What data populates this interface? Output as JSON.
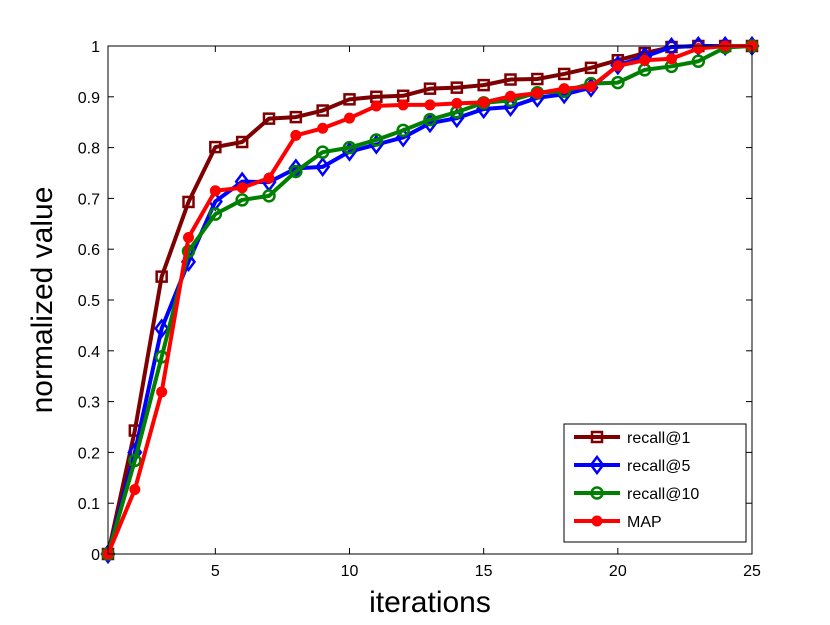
{
  "chart_data": {
    "type": "line",
    "title": "",
    "xlabel": "iterations",
    "ylabel": "normalized value",
    "xlim": [
      1,
      25
    ],
    "ylim": [
      0,
      1
    ],
    "xticks": [
      5,
      10,
      15,
      20,
      25
    ],
    "yticks": [
      0,
      0.1,
      0.2,
      0.3,
      0.4,
      0.5,
      0.6,
      0.7,
      0.8,
      0.9,
      1
    ],
    "ytick_labels": [
      "0",
      "0.1",
      "0.2",
      "0.3",
      "0.4",
      "0.5",
      "0.6",
      "0.7",
      "0.8",
      "0.9",
      "1"
    ],
    "grid": false,
    "legend_position": "bottom-right",
    "x": [
      1,
      2,
      3,
      4,
      5,
      6,
      7,
      8,
      9,
      10,
      11,
      12,
      13,
      14,
      15,
      16,
      17,
      18,
      19,
      20,
      21,
      22,
      23,
      24,
      25
    ],
    "series": [
      {
        "name": "recall@1",
        "color": "#7f0000",
        "marker": "square",
        "values": [
          0,
          0.243,
          0.546,
          0.693,
          0.801,
          0.811,
          0.857,
          0.86,
          0.873,
          0.895,
          0.9,
          0.902,
          0.916,
          0.918,
          0.923,
          0.934,
          0.935,
          0.945,
          0.957,
          0.972,
          0.986,
          0.998,
          1.0,
          1.0,
          1.0
        ]
      },
      {
        "name": "recall@5",
        "color": "#0000ff",
        "marker": "diamond",
        "values": [
          0,
          0.2,
          0.444,
          0.575,
          0.694,
          0.733,
          0.732,
          0.759,
          0.762,
          0.792,
          0.806,
          0.82,
          0.848,
          0.858,
          0.876,
          0.88,
          0.898,
          0.905,
          0.918,
          0.962,
          0.979,
          0.998,
          1.0,
          1.0,
          1.0
        ]
      },
      {
        "name": "recall@10",
        "color": "#008000",
        "marker": "circle",
        "values": [
          0,
          0.184,
          0.388,
          0.596,
          0.669,
          0.697,
          0.705,
          0.753,
          0.791,
          0.8,
          0.815,
          0.834,
          0.855,
          0.87,
          0.888,
          0.893,
          0.908,
          0.911,
          0.926,
          0.928,
          0.953,
          0.96,
          0.97,
          0.997,
          1.0
        ]
      },
      {
        "name": "MAP",
        "color": "#ff0000",
        "marker": "dot",
        "values": [
          0,
          0.127,
          0.319,
          0.623,
          0.715,
          0.721,
          0.74,
          0.824,
          0.838,
          0.858,
          0.882,
          0.884,
          0.884,
          0.887,
          0.889,
          0.901,
          0.907,
          0.916,
          0.92,
          0.961,
          0.972,
          0.975,
          0.995,
          1.0,
          1.0
        ]
      }
    ]
  }
}
